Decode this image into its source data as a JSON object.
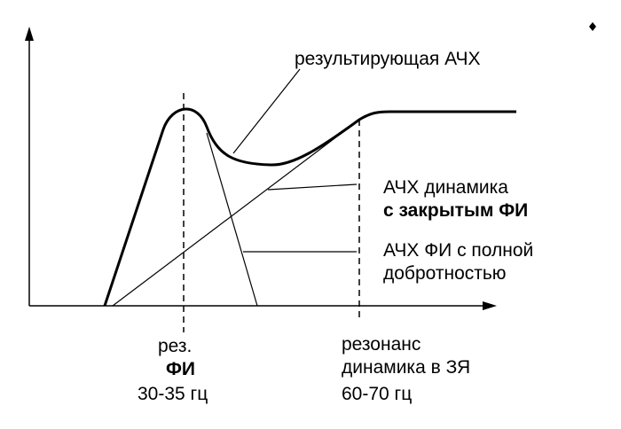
{
  "labels": {
    "resulting_response": "результирующая  АЧХ",
    "driver_closed_line1": "АЧХ  динамика",
    "driver_closed_line2": "с закрытым ФИ",
    "port_full_q_line1": "АЧХ  ФИ с полной",
    "port_full_q_line2": "добротностью",
    "port_res_line1": "рез.",
    "port_res_line2": "ФИ",
    "port_res_freq": "30-35 гц",
    "driver_res_line1": "резонанс",
    "driver_res_line2": "динамика в ЗЯ",
    "driver_res_freq": "60-70 гц"
  },
  "colors": {
    "ink": "#000000",
    "background": "#ffffff"
  }
}
